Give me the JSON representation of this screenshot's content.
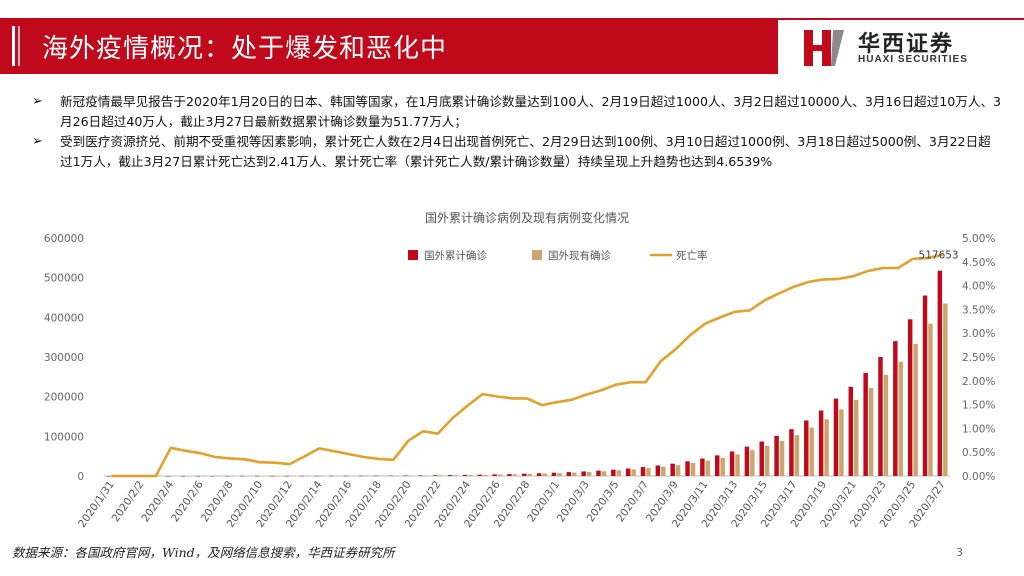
{
  "header": {
    "title": "海外疫情概况：处于爆发和恶化中",
    "brand_cn": "华西证券",
    "brand_en": "HUAXI SECURITIES",
    "accent_color": "#c0091a"
  },
  "bullets": [
    "新冠疫情最早见报告于2020年1月20日的日本、韩国等国家，在1月底累计确诊数量达到100人、2月19日超过1000人、3月2日超过10000人、3月16日超过10万人、3月26日超过40万人，截止3月27日最新数据累计确诊数量为51.77万人；",
    "受到医疗资源挤兑、前期不受重视等因素影响，累计死亡人数在2月4日出现首例死亡、2月29日达到100例、3月10日超过1000例、3月18日超过5000例、3月22日超过1万人，截止3月27日累计死亡达到2.41万人、累计死亡率（累计死亡人数/累计确诊数量）持续呈现上升趋势也达到4.6539%"
  ],
  "chart_data": {
    "type": "bar",
    "title": "国外累计确诊病例及现有病例变化情况",
    "categories": [
      "2020/1/31",
      "2020/2/1",
      "2020/2/2",
      "2020/2/3",
      "2020/2/4",
      "2020/2/5",
      "2020/2/6",
      "2020/2/7",
      "2020/2/8",
      "2020/2/9",
      "2020/2/10",
      "2020/2/11",
      "2020/2/12",
      "2020/2/13",
      "2020/2/14",
      "2020/2/15",
      "2020/2/16",
      "2020/2/17",
      "2020/2/18",
      "2020/2/19",
      "2020/2/20",
      "2020/2/21",
      "2020/2/22",
      "2020/2/23",
      "2020/2/24",
      "2020/2/25",
      "2020/2/26",
      "2020/2/27",
      "2020/2/28",
      "2020/2/29",
      "2020/3/1",
      "2020/3/2",
      "2020/3/3",
      "2020/3/4",
      "2020/3/5",
      "2020/3/6",
      "2020/3/7",
      "2020/3/8",
      "2020/3/9",
      "2020/3/10",
      "2020/3/11",
      "2020/3/12",
      "2020/3/13",
      "2020/3/14",
      "2020/3/15",
      "2020/3/16",
      "2020/3/17",
      "2020/3/18",
      "2020/3/19",
      "2020/3/20",
      "2020/3/21",
      "2020/3/22",
      "2020/3/23",
      "2020/3/24",
      "2020/3/25",
      "2020/3/26",
      "2020/3/27"
    ],
    "tick_labels": [
      "2020/1/31",
      "2020/2/2",
      "2020/2/4",
      "2020/2/6",
      "2020/2/8",
      "2020/2/10",
      "2020/2/12",
      "2020/2/14",
      "2020/2/16",
      "2020/2/18",
      "2020/2/20",
      "2020/2/22",
      "2020/2/24",
      "2020/2/26",
      "2020/2/28",
      "2020/3/1",
      "2020/3/3",
      "2020/3/5",
      "2020/3/7",
      "2020/3/9",
      "2020/3/11",
      "2020/3/13",
      "2020/3/15",
      "2020/3/17",
      "2020/3/19",
      "2020/3/21",
      "2020/3/23",
      "2020/3/25",
      "2020/3/27"
    ],
    "series": [
      {
        "name": "国外累计确诊",
        "kind": "bar",
        "axis": "left",
        "color": "#c0091a",
        "values": [
          130,
          140,
          150,
          160,
          170,
          180,
          200,
          240,
          280,
          300,
          330,
          360,
          400,
          450,
          510,
          600,
          700,
          800,
          950,
          1100,
          1300,
          1600,
          1900,
          2300,
          2700,
          3200,
          4000,
          4800,
          5800,
          6900,
          8200,
          9800,
          11500,
          13500,
          16000,
          19000,
          22500,
          26500,
          31000,
          37000,
          44000,
          52000,
          62000,
          74000,
          87000,
          101000,
          118000,
          140000,
          165000,
          195000,
          225000,
          260000,
          300000,
          340000,
          395000,
          455000,
          517653
        ]
      },
      {
        "name": "国外现有确诊",
        "kind": "bar",
        "axis": "right",
        "color": "#cca56e",
        "values": [
          120,
          130,
          140,
          150,
          160,
          170,
          185,
          220,
          260,
          280,
          305,
          330,
          365,
          410,
          465,
          545,
          635,
          725,
          860,
          995,
          1175,
          1440,
          1710,
          2060,
          2420,
          2860,
          3560,
          4280,
          5160,
          6140,
          7280,
          8700,
          10200,
          12000,
          14200,
          16800,
          19900,
          23400,
          27400,
          32700,
          38800,
          45800,
          54500,
          65000,
          76300,
          88400,
          103000,
          122000,
          143000,
          168000,
          192000,
          222000,
          255000,
          288000,
          333000,
          384000,
          435000
        ]
      },
      {
        "name": "死亡率",
        "kind": "line",
        "axis": "right",
        "color": "#e3a02a",
        "values": [
          0.0,
          0.0,
          0.0,
          0.0,
          0.0059,
          0.0053,
          0.0048,
          0.004,
          0.0037,
          0.0035,
          0.0029,
          0.0028,
          0.0025,
          0.0041,
          0.0058,
          0.0052,
          0.0046,
          0.004,
          0.0036,
          0.0034,
          0.0074,
          0.0094,
          0.0089,
          0.0122,
          0.0148,
          0.0172,
          0.0167,
          0.0163,
          0.0163,
          0.0149,
          0.0155,
          0.016,
          0.0171,
          0.018,
          0.0192,
          0.0197,
          0.0197,
          0.0241,
          0.0266,
          0.0296,
          0.032,
          0.0333,
          0.0345,
          0.0348,
          0.0369,
          0.0384,
          0.0398,
          0.0408,
          0.0413,
          0.0414,
          0.042,
          0.0431,
          0.0437,
          0.0437,
          0.0456,
          0.0458,
          0.0465
        ]
      }
    ],
    "left_axis": {
      "ylim": [
        0,
        600000
      ],
      "ticks": [
        "0",
        "100000",
        "200000",
        "300000",
        "400000",
        "500000",
        "600000"
      ]
    },
    "right_axis": {
      "ylim": [
        0,
        0.05
      ],
      "ticks": [
        "0.00%",
        "0.50%",
        "1.00%",
        "1.50%",
        "2.00%",
        "2.50%",
        "3.00%",
        "3.50%",
        "4.00%",
        "4.50%",
        "5.00%"
      ]
    },
    "annotation": "517653",
    "legend_position": "top-center",
    "grid": false
  },
  "footer": {
    "source": "数据来源：各国政府官网，Wind，及网络信息搜索，华西证券研究所",
    "page": "3"
  }
}
